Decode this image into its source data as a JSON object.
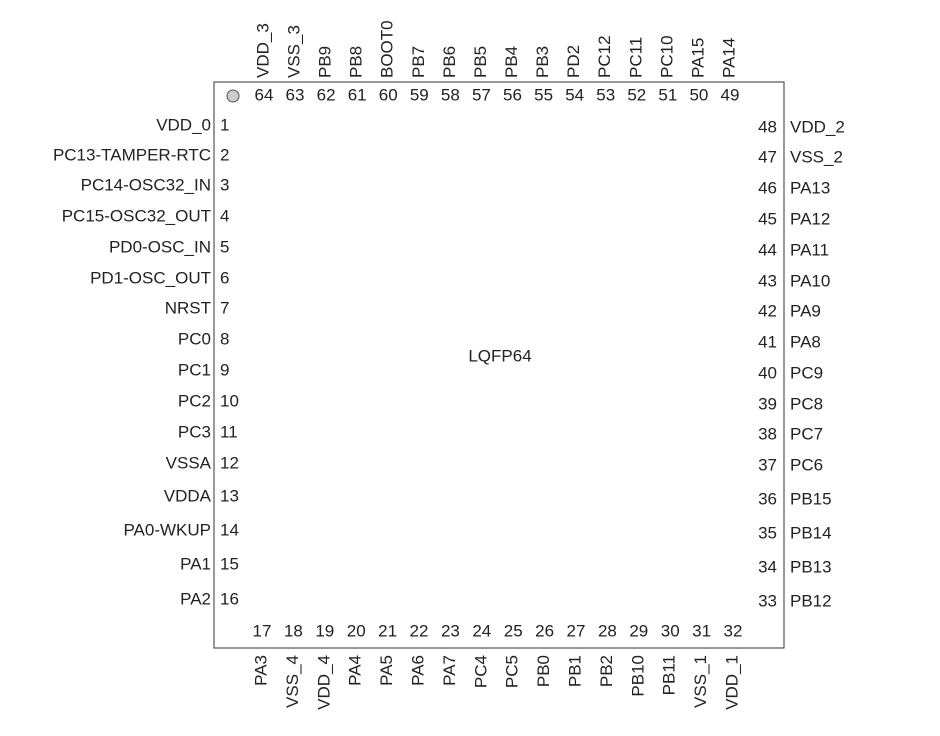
{
  "package": "LQFP64",
  "left_pins": [
    {
      "number": 1,
      "name": "VDD_0"
    },
    {
      "number": 2,
      "name": "PC13-TAMPER-RTC"
    },
    {
      "number": 3,
      "name": "PC14-OSC32_IN"
    },
    {
      "number": 4,
      "name": "PC15-OSC32_OUT"
    },
    {
      "number": 5,
      "name": "PD0-OSC_IN"
    },
    {
      "number": 6,
      "name": "PD1-OSC_OUT"
    },
    {
      "number": 7,
      "name": "NRST"
    },
    {
      "number": 8,
      "name": "PC0"
    },
    {
      "number": 9,
      "name": "PC1"
    },
    {
      "number": 10,
      "name": "PC2"
    },
    {
      "number": 11,
      "name": "PC3"
    },
    {
      "number": 12,
      "name": "VSSA"
    },
    {
      "number": 13,
      "name": "VDDA"
    },
    {
      "number": 14,
      "name": "PA0-WKUP"
    },
    {
      "number": 15,
      "name": "PA1"
    },
    {
      "number": 16,
      "name": "PA2"
    }
  ],
  "bottom_pins": [
    {
      "number": 17,
      "name": "PA3"
    },
    {
      "number": 18,
      "name": "VSS_4"
    },
    {
      "number": 19,
      "name": "VDD_4"
    },
    {
      "number": 20,
      "name": "PA4"
    },
    {
      "number": 21,
      "name": "PA5"
    },
    {
      "number": 22,
      "name": "PA6"
    },
    {
      "number": 23,
      "name": "PA7"
    },
    {
      "number": 24,
      "name": "PC4"
    },
    {
      "number": 25,
      "name": "PC5"
    },
    {
      "number": 26,
      "name": "PB0"
    },
    {
      "number": 27,
      "name": "PB1"
    },
    {
      "number": 28,
      "name": "PB2"
    },
    {
      "number": 29,
      "name": "PB10"
    },
    {
      "number": 30,
      "name": "PB11"
    },
    {
      "number": 31,
      "name": "VSS_1"
    },
    {
      "number": 32,
      "name": "VDD_1"
    }
  ],
  "right_pins": [
    {
      "number": 33,
      "name": "PB12"
    },
    {
      "number": 34,
      "name": "PB13"
    },
    {
      "number": 35,
      "name": "PB14"
    },
    {
      "number": 36,
      "name": "PB15"
    },
    {
      "number": 37,
      "name": "PC6"
    },
    {
      "number": 38,
      "name": "PC7"
    },
    {
      "number": 39,
      "name": "PC8"
    },
    {
      "number": 40,
      "name": "PC9"
    },
    {
      "number": 41,
      "name": "PA8"
    },
    {
      "number": 42,
      "name": "PA9"
    },
    {
      "number": 43,
      "name": "PA10"
    },
    {
      "number": 44,
      "name": "PA11"
    },
    {
      "number": 45,
      "name": "PA12"
    },
    {
      "number": 46,
      "name": "PA13"
    },
    {
      "number": 47,
      "name": "VSS_2"
    },
    {
      "number": 48,
      "name": "VDD_2"
    }
  ],
  "top_pins": [
    {
      "number": 49,
      "name": "PA14"
    },
    {
      "number": 50,
      "name": "PA15"
    },
    {
      "number": 51,
      "name": "PC10"
    },
    {
      "number": 52,
      "name": "PC11"
    },
    {
      "number": 53,
      "name": "PC12"
    },
    {
      "number": 54,
      "name": "PD2"
    },
    {
      "number": 55,
      "name": "PB3"
    },
    {
      "number": 56,
      "name": "PB4"
    },
    {
      "number": 57,
      "name": "PB5"
    },
    {
      "number": 58,
      "name": "PB6"
    },
    {
      "number": 59,
      "name": "PB7"
    },
    {
      "number": 60,
      "name": "BOOT0"
    },
    {
      "number": 61,
      "name": "PB8"
    },
    {
      "number": 62,
      "name": "PB9"
    },
    {
      "number": 63,
      "name": "VSS_3"
    },
    {
      "number": 64,
      "name": "VDD_3"
    }
  ]
}
